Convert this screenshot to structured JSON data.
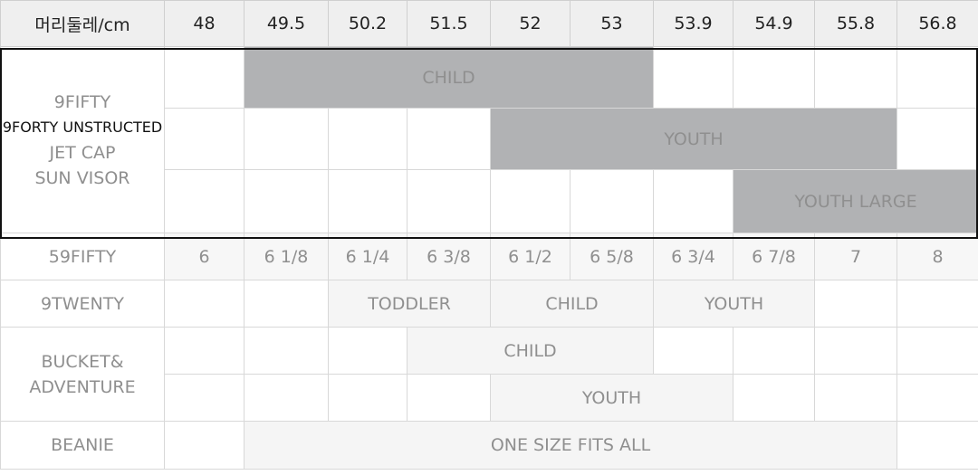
{
  "header": {
    "label": "머리둘레/cm",
    "sizes": [
      "48",
      "49.5",
      "50.2",
      "51.5",
      "52",
      "53",
      "53.9",
      "54.9",
      "55.8",
      "56.8"
    ]
  },
  "group1": {
    "labels": [
      "9FIFTY",
      "9FORTY UNSTRUCTED",
      "JET CAP",
      "SUN VISOR"
    ],
    "child": "CHILD",
    "youth": "YOUTH",
    "youth_large": "YOUTH LARGE"
  },
  "fifty_nine": {
    "label": "59FIFTY",
    "values": [
      "6",
      "6 1/8",
      "6 1/4",
      "6 3/8",
      "6 1/2",
      "6 5/8",
      "6 3/4",
      "6 7/8",
      "7",
      "8"
    ]
  },
  "nine_twenty": {
    "label": "9TWENTY",
    "toddler": "TODDLER",
    "child": "CHILD",
    "youth": "YOUTH"
  },
  "bucket": {
    "labels": [
      "BUCKET&",
      "ADVENTURE"
    ],
    "child": "CHILD",
    "youth": "YOUTH"
  },
  "beanie": {
    "label": "BEANIE",
    "value": "ONE SIZE FITS ALL"
  },
  "colors": {
    "dark_band": "#b1b2b4",
    "light_band": "#f5f5f5",
    "header_bg": "#efefef",
    "outline": "#111111"
  }
}
